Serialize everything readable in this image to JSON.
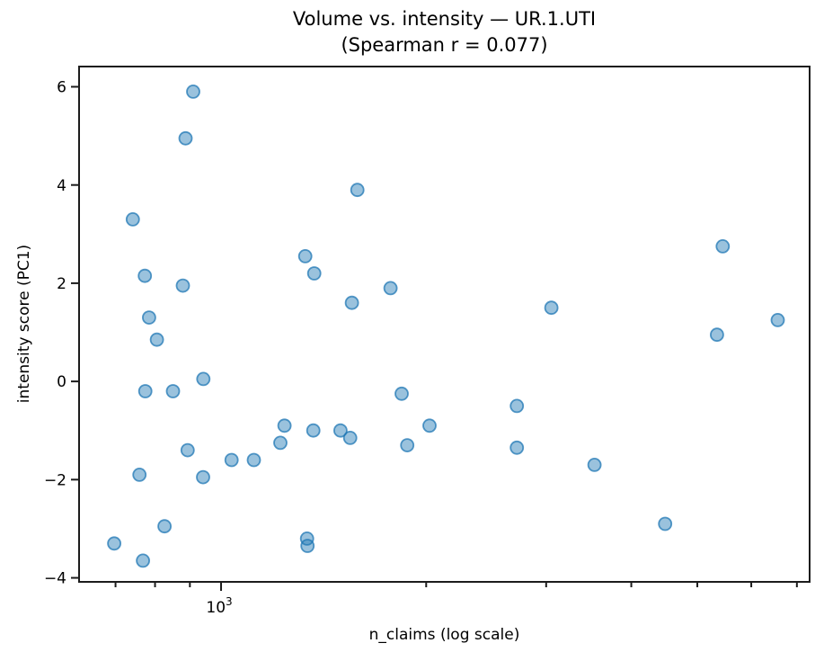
{
  "figure": {
    "title_line1": "Volume vs. intensity — UR.1.UTI",
    "title_line2": "(Spearman r = 0.077)",
    "xlabel": "n_claims (log scale)",
    "ylabel": "intensity score (PC1)"
  },
  "chart_data": {
    "type": "scatter",
    "title": "Volume vs. intensity — UR.1.UTI",
    "subtitle": "(Spearman r = 0.077)",
    "spearman_r": 0.077,
    "xlabel": "n_claims (log scale)",
    "ylabel": "intensity score (PC1)",
    "x_scale": "log",
    "grid": false,
    "legend": "none",
    "xlim": [
      617,
      7330
    ],
    "ylim": [
      -4.1,
      6.43
    ],
    "y_ticks": [
      {
        "value": 6,
        "label": "6"
      },
      {
        "value": 4,
        "label": "4"
      },
      {
        "value": 2,
        "label": "2"
      },
      {
        "value": 0,
        "label": "0"
      },
      {
        "value": -2,
        "label": "−2"
      },
      {
        "value": -4,
        "label": "−4"
      }
    ],
    "x_major_tick": {
      "value": 1000,
      "mantissa": "10",
      "exponent": "3"
    },
    "x_minor_ticks": [
      700,
      800,
      900,
      2000,
      3000,
      4000,
      5000,
      6000,
      7000
    ],
    "marker": {
      "shape": "circle",
      "radius": 7,
      "fill_color": "#1f77b4",
      "fill_opacity": 0.45,
      "edge_color": "#1f77b4",
      "edge_opacity": 0.75,
      "edge_width": 1.8
    },
    "axis_color": "#1c1c1c",
    "points": [
      [
        910,
        5.9
      ],
      [
        887,
        4.95
      ],
      [
        742,
        3.3
      ],
      [
        773,
        2.15
      ],
      [
        879,
        1.95
      ],
      [
        784,
        1.3
      ],
      [
        805,
        0.85
      ],
      [
        942,
        0.05
      ],
      [
        774,
        -0.2
      ],
      [
        850,
        -0.2
      ],
      [
        893,
        -1.4
      ],
      [
        1036,
        -1.6
      ],
      [
        1117,
        -1.6
      ],
      [
        1222,
        -1.25
      ],
      [
        759,
        -1.9
      ],
      [
        941,
        -1.95
      ],
      [
        826,
        -2.95
      ],
      [
        697,
        -3.3
      ],
      [
        768,
        -3.65
      ],
      [
        1585,
        3.9
      ],
      [
        1329,
        2.55
      ],
      [
        1370,
        2.2
      ],
      [
        1773,
        1.9
      ],
      [
        1556,
        1.6
      ],
      [
        1841,
        -0.25
      ],
      [
        1239,
        -0.9
      ],
      [
        1366,
        -1.0
      ],
      [
        1497,
        -1.0
      ],
      [
        1547,
        -1.15
      ],
      [
        1876,
        -1.3
      ],
      [
        2023,
        -0.9
      ],
      [
        1337,
        -3.2
      ],
      [
        1339,
        -3.35
      ],
      [
        5448,
        2.75
      ],
      [
        3053,
        1.5
      ],
      [
        5343,
        0.95
      ],
      [
        6560,
        1.25
      ],
      [
        2717,
        -0.5
      ],
      [
        2717,
        -1.35
      ],
      [
        3532,
        -1.7
      ],
      [
        4484,
        -2.9
      ]
    ]
  }
}
